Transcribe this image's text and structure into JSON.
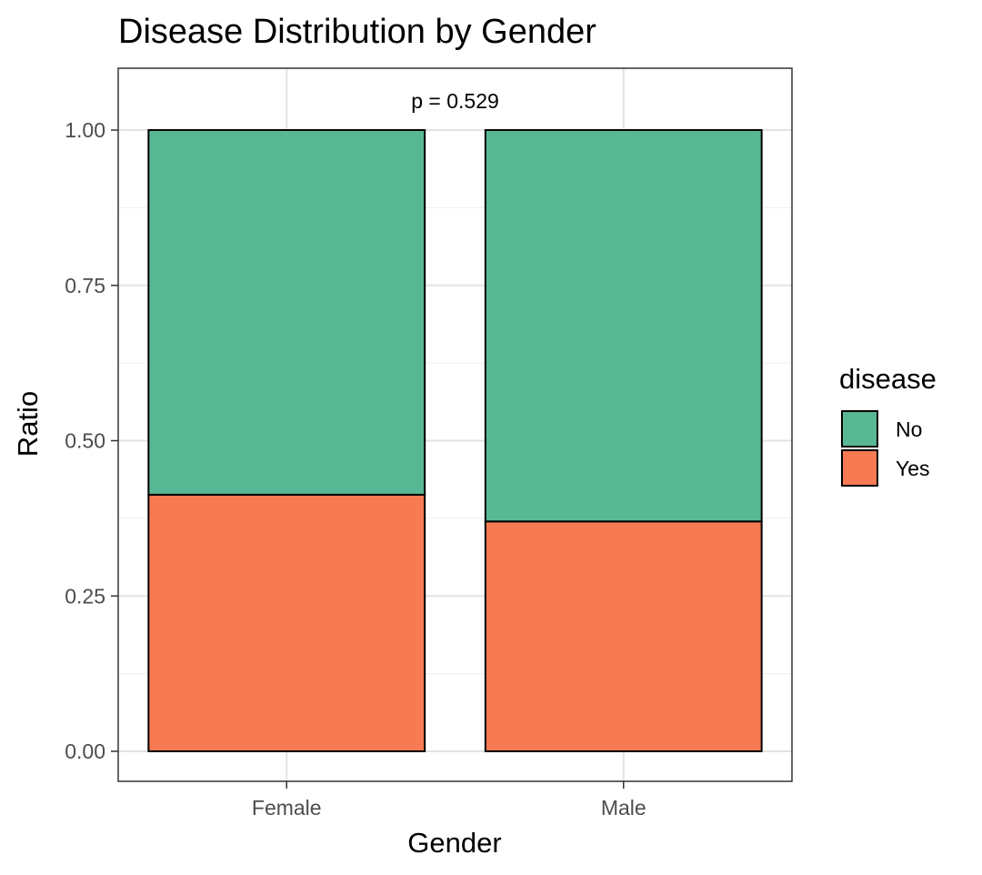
{
  "chart_data": {
    "type": "bar",
    "stacked": true,
    "title": "Disease Distribution by Gender",
    "xlabel": "Gender",
    "ylabel": "Ratio",
    "categories": [
      "Female",
      "Male"
    ],
    "ylim": [
      -0.05,
      1.1
    ],
    "yticks": [
      0,
      0.25,
      0.5,
      0.75,
      1.0
    ],
    "ytick_labels": [
      "0.00",
      "0.25",
      "0.50",
      "0.75",
      "1.00"
    ],
    "grid": true,
    "series": [
      {
        "name": "Yes",
        "values": [
          0.413,
          0.37
        ],
        "color": "#F77A52"
      },
      {
        "name": "No",
        "values": [
          0.587,
          0.63
        ],
        "color": "#59B894"
      }
    ],
    "annotation": "p = 0.529",
    "legend": {
      "title": "disease",
      "position": "right",
      "entries": [
        "No",
        "Yes"
      ]
    }
  }
}
